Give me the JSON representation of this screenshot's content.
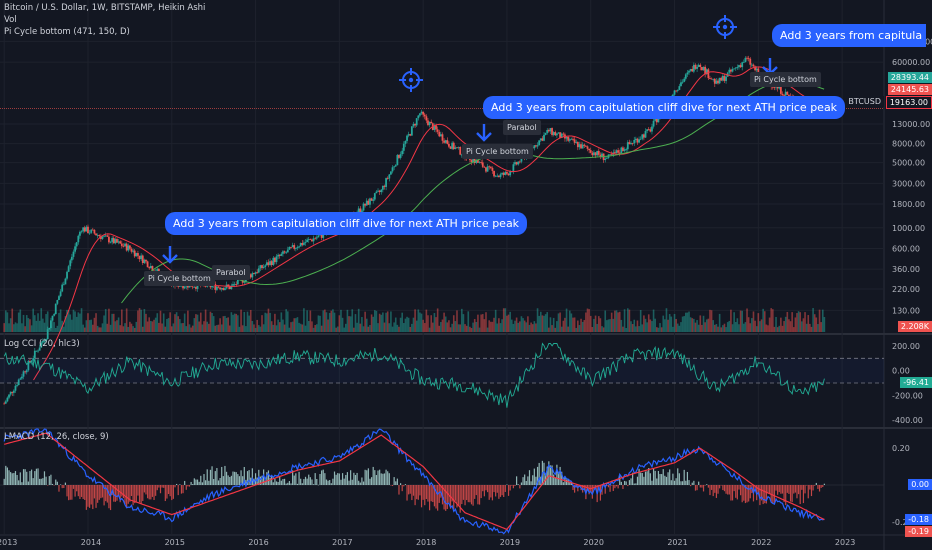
{
  "header": {
    "title": "Bitcoin / U.S. Dollar, 1W, BITSTAMP, Heikin Ashi",
    "volume": "Vol",
    "indicator": "Pi Cycle bottom (471, 150, D)"
  },
  "annotations": {
    "callout_text": "Add 3 years from capitulation cliff dive for next ATH price peak",
    "callout_text_cut": "Add 3 years from capitula",
    "tag_pi": "Pi Cycle bottom",
    "tag_parabolic": "Parabol"
  },
  "price_axis": {
    "ticks": [
      "100000.00",
      "60000.00",
      "13000.00",
      "8000.00",
      "5000.00",
      "3000.00",
      "1800.00",
      "1000.00",
      "600.00",
      "360.00",
      "220.00",
      "130.00"
    ],
    "badge_1": "28393.44",
    "badge_2": "24145.63",
    "current": "19163.00",
    "symbol": "BTCUSD",
    "volume_badge": "2.208K"
  },
  "cci_panel": {
    "title": "Log CCI (20, hlc3)",
    "ticks": [
      "200.00",
      "0.00",
      "-200.00",
      "-400.00"
    ],
    "value": "-96.41"
  },
  "lmacd_panel": {
    "title": "LMACD (12, 26, close, 9)",
    "ticks": [
      "0.20",
      "-0.20"
    ],
    "zero": "0.00",
    "value_1": "-0.18",
    "value_2": "-0.19"
  },
  "time_axis": [
    "2013",
    "2014",
    "2015",
    "2016",
    "2017",
    "2018",
    "2019",
    "2020",
    "2021",
    "2022",
    "2023"
  ],
  "colors": {
    "background": "#131722",
    "callout": "#2962ff",
    "up": "#26a69a",
    "down": "#ef5350",
    "ma_red": "#f23645",
    "ma_green": "#4caf50",
    "macd": "#2962ff",
    "signal": "#f23645",
    "cci": "#22ab94"
  },
  "chart_data": [
    {
      "type": "line",
      "title": "Bitcoin / U.S. Dollar, 1W, BITSTAMP, Heikin Ashi",
      "scale": "log",
      "x": [
        2013.0,
        2013.5,
        2013.92,
        2014.5,
        2015.0,
        2015.7,
        2016.5,
        2017.0,
        2017.5,
        2017.96,
        2018.3,
        2018.9,
        2019.0,
        2019.5,
        2020.2,
        2020.7,
        2021.0,
        2021.28,
        2021.5,
        2021.86,
        2022.0,
        2022.5,
        2022.8
      ],
      "price": [
        13,
        70,
        1000,
        600,
        250,
        230,
        650,
        1000,
        2500,
        17000,
        8000,
        3600,
        3800,
        11000,
        5500,
        11000,
        30000,
        60000,
        35000,
        65000,
        45000,
        21000,
        19163
      ],
      "ylim": [
        80,
        150000
      ],
      "series": [
        {
          "name": "BTCUSD",
          "values": [
            13,
            70,
            1000,
            600,
            250,
            230,
            650,
            1000,
            2500,
            17000,
            8000,
            3600,
            3800,
            11000,
            5500,
            11000,
            30000,
            60000,
            35000,
            65000,
            45000,
            21000,
            19163
          ]
        }
      ]
    },
    {
      "type": "line",
      "title": "Log CCI (20, hlc3)",
      "x": [
        2013.0,
        2013.5,
        2014.0,
        2014.5,
        2015.0,
        2015.5,
        2016.0,
        2016.5,
        2017.0,
        2017.5,
        2018.0,
        2018.5,
        2019.0,
        2019.5,
        2020.0,
        2020.5,
        2021.0,
        2021.5,
        2022.0,
        2022.5,
        2022.8
      ],
      "values": [
        100,
        50,
        -150,
        80,
        -100,
        60,
        50,
        120,
        80,
        140,
        -80,
        -120,
        -250,
        250,
        -80,
        120,
        150,
        -150,
        80,
        -200,
        -96.41
      ],
      "ylim": [
        -400,
        200
      ]
    },
    {
      "type": "line",
      "title": "LMACD (12, 26, close, 9)",
      "x": [
        2013.0,
        2013.5,
        2014.0,
        2014.5,
        2015.0,
        2015.5,
        2016.0,
        2016.5,
        2017.0,
        2017.5,
        2018.0,
        2018.5,
        2019.0,
        2019.5,
        2020.0,
        2020.5,
        2021.0,
        2021.3,
        2021.7,
        2022.0,
        2022.5,
        2022.8
      ],
      "series": [
        {
          "name": "LMACD",
          "values": [
            0.25,
            0.3,
            0.05,
            -0.12,
            -0.18,
            -0.05,
            0.03,
            0.1,
            0.15,
            0.3,
            0.05,
            -0.2,
            -0.25,
            0.1,
            -0.05,
            0.08,
            0.15,
            0.2,
            0.05,
            -0.05,
            -0.15,
            -0.18
          ]
        },
        {
          "name": "Signal",
          "values": [
            0.22,
            0.28,
            0.1,
            -0.08,
            -0.16,
            -0.08,
            0.0,
            0.08,
            0.13,
            0.27,
            0.1,
            -0.15,
            -0.24,
            0.05,
            -0.02,
            0.06,
            0.12,
            0.2,
            0.08,
            -0.02,
            -0.12,
            -0.19
          ]
        }
      ],
      "ylim": [
        -0.2,
        0.3
      ]
    }
  ]
}
